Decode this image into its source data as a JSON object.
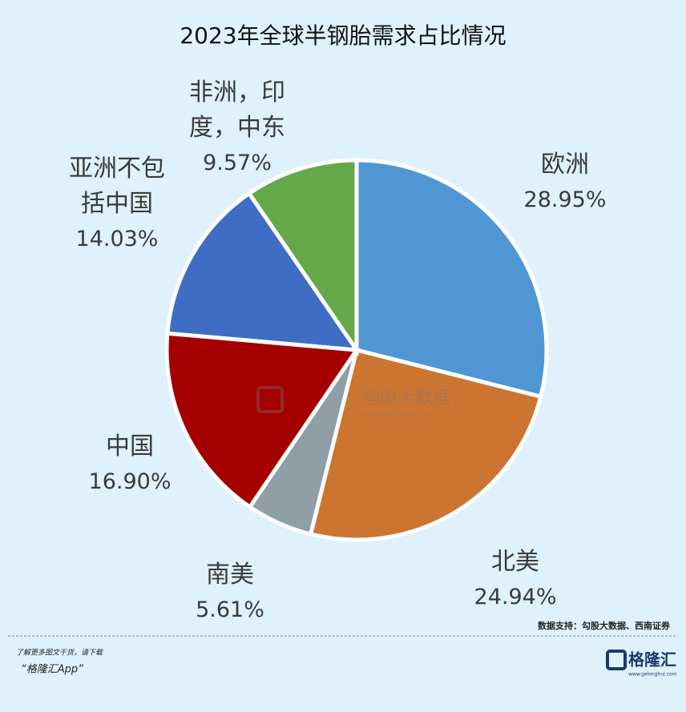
{
  "chart_data": {
    "type": "pie",
    "title": "2023年全球半钢胎需求占比情况",
    "categories": [
      "欧洲",
      "北美",
      "南美",
      "中国",
      "亚洲不包括中国",
      "非洲，印度，中东"
    ],
    "values": [
      28.95,
      24.94,
      5.61,
      16.9,
      14.03,
      9.57
    ],
    "value_labels": [
      "28.95%",
      "24.94%",
      "5.61%",
      "16.90%",
      "14.03%",
      "9.57%"
    ],
    "colors": [
      "#5196d4",
      "#cc7532",
      "#8e9fa6",
      "#a40000",
      "#3f6dc3",
      "#64a847"
    ]
  },
  "watermark": {
    "name": "勾股大数据",
    "url": "www.gogudata.com"
  },
  "footer": {
    "source": "数据支持：勾股大数据、西南证券",
    "promo": "了解更多图文干货，请下载",
    "app": "“格隆汇App”",
    "logo": "格隆汇",
    "logo_url": "www.gelonghui.com"
  }
}
